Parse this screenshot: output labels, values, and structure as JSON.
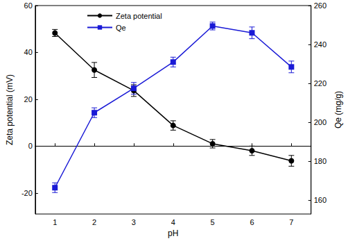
{
  "chart_data": {
    "type": "line",
    "x_label": "pH",
    "y_label": "Zeta potential (mV)",
    "y2_label": "Qe (mg/g)",
    "x": [
      1,
      2,
      3,
      4,
      5,
      6,
      7
    ],
    "xlim": [
      0.5,
      7.5
    ],
    "xticks": [
      1,
      2,
      3,
      4,
      5,
      6,
      7
    ],
    "ylim": [
      -29,
      60
    ],
    "yticks": [
      -20,
      0,
      20,
      40,
      60
    ],
    "y2lim": [
      153,
      260
    ],
    "y2ticks": [
      160,
      180,
      200,
      220,
      240,
      260
    ],
    "legend": "top-left",
    "grid": false,
    "series": [
      {
        "name": "Zeta potential",
        "color": "#000000",
        "marker": "circle",
        "line_style": "solid",
        "values": [
          48.3,
          32.5,
          23.7,
          8.8,
          1.0,
          -2.0,
          -6.3
        ],
        "errors": [
          1.5,
          3.2,
          2.5,
          2.0,
          1.8,
          2.0,
          2.3
        ]
      },
      {
        "name": "Qe",
        "color": "#1a1ad6",
        "marker": "square",
        "line_style": "solid",
        "axis": "y2",
        "values": [
          166.5,
          205.0,
          217.5,
          231.0,
          249.5,
          246.0,
          228.5
        ],
        "errors": [
          2.5,
          2.5,
          3.0,
          2.5,
          2.0,
          3.0,
          3.0
        ]
      }
    ]
  }
}
